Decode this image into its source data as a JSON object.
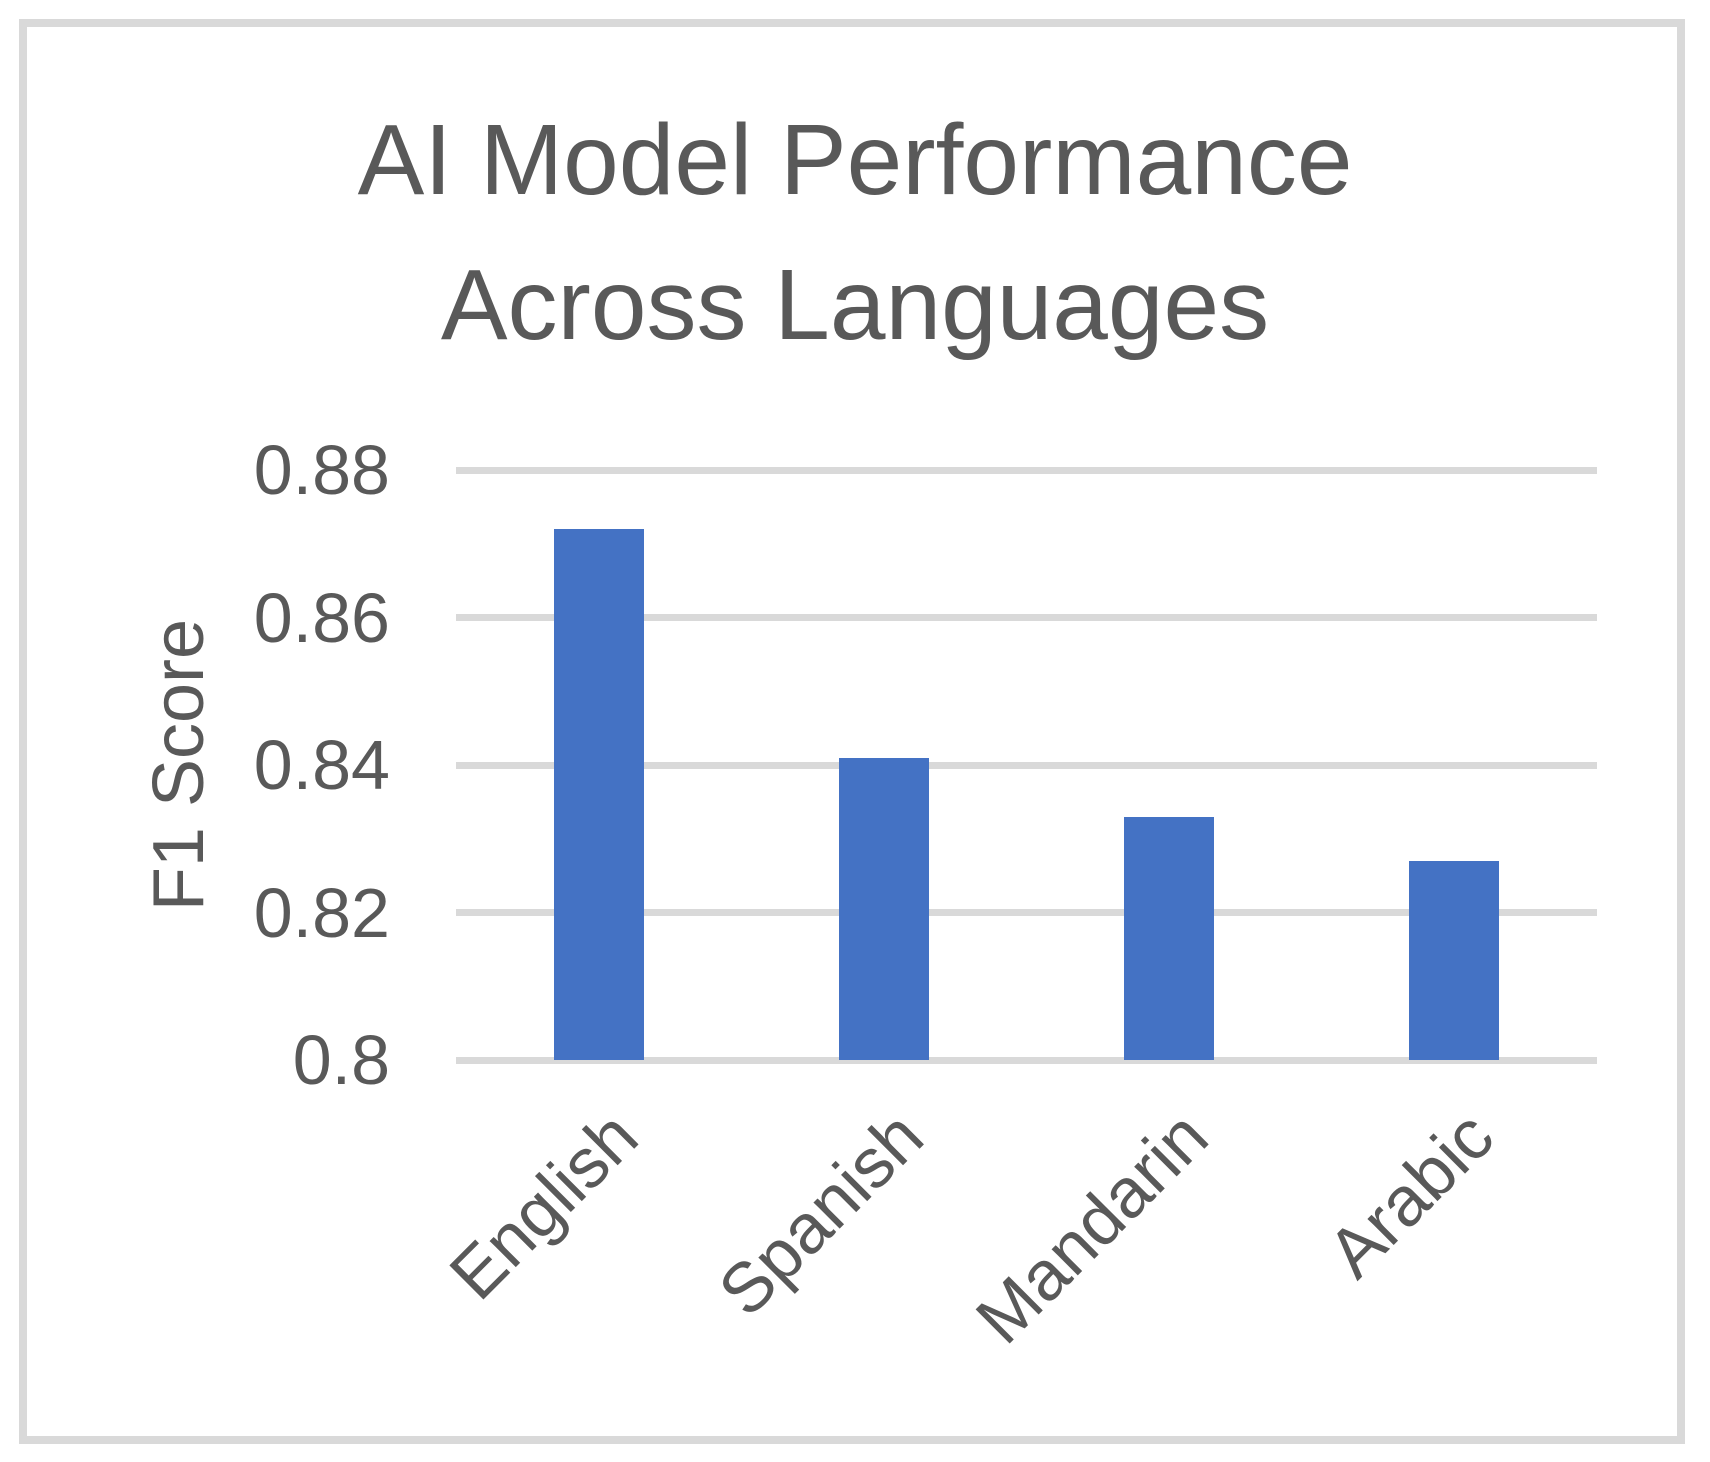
{
  "chart_data": {
    "type": "bar",
    "title": "AI Model Performance Across Languages",
    "title_lines": [
      "AI Model Performance",
      "Across Languages"
    ],
    "categories": [
      "English",
      "Spanish",
      "Mandarin",
      "Arabic"
    ],
    "values": [
      0.872,
      0.841,
      0.833,
      0.827
    ],
    "xlabel": "",
    "ylabel": "F1 Score",
    "ylim": [
      0.8,
      0.88
    ],
    "yticks": [
      "0.8",
      "0.82",
      "0.84",
      "0.86",
      "0.88"
    ],
    "ytick_values": [
      0.8,
      0.82,
      0.84,
      0.86,
      0.88
    ],
    "grid": true,
    "legend": "none",
    "colors": {
      "bar": "#4472C4",
      "gridline": "#D9D9D9",
      "frame_border": "#D9D9D9",
      "text": "#595959"
    }
  }
}
